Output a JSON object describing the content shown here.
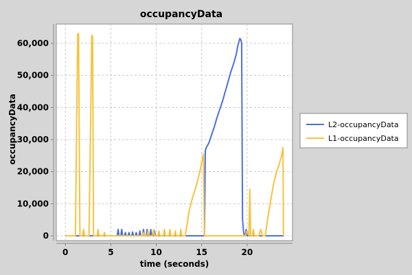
{
  "chart_data": {
    "type": "line",
    "title": "occupancyData",
    "xlabel": "time (seconds)",
    "ylabel": "occupancyData",
    "xlim": [
      -1,
      25
    ],
    "ylim": [
      -1500,
      66000
    ],
    "x_ticks": [
      0,
      5,
      10,
      15,
      20
    ],
    "y_ticks": [
      0,
      10000,
      20000,
      30000,
      40000,
      50000,
      60000
    ],
    "x_tick_labels": [
      "0",
      "5",
      "10",
      "15",
      "20"
    ],
    "y_tick_labels": [
      "0",
      "10,000",
      "20,000",
      "30,000",
      "40,000",
      "50,000",
      "60,000"
    ],
    "grid": true,
    "legend_position": "right",
    "series": [
      {
        "name": "L2-occupancyData",
        "color": "#4a6fe3",
        "points": [
          [
            0,
            0
          ],
          [
            5.7,
            0
          ],
          [
            5.8,
            2000
          ],
          [
            5.9,
            0
          ],
          [
            6.1,
            0
          ],
          [
            6.2,
            2000
          ],
          [
            6.3,
            0
          ],
          [
            6.5,
            0
          ],
          [
            6.6,
            1000
          ],
          [
            6.7,
            0
          ],
          [
            6.9,
            0
          ],
          [
            7.0,
            1000
          ],
          [
            7.1,
            0
          ],
          [
            7.3,
            0
          ],
          [
            7.4,
            1200
          ],
          [
            7.5,
            0
          ],
          [
            7.7,
            0
          ],
          [
            7.8,
            1000
          ],
          [
            7.9,
            0
          ],
          [
            8.1,
            0
          ],
          [
            8.2,
            1500
          ],
          [
            8.3,
            0
          ],
          [
            8.5,
            0
          ],
          [
            8.6,
            2000
          ],
          [
            8.7,
            0
          ],
          [
            8.9,
            0
          ],
          [
            9.0,
            2000
          ],
          [
            9.1,
            0
          ],
          [
            9.3,
            0
          ],
          [
            9.4,
            2000
          ],
          [
            9.5,
            0
          ],
          [
            9.7,
            0
          ],
          [
            9.8,
            1500
          ],
          [
            9.9,
            0
          ],
          [
            15.3,
            0
          ],
          [
            15.4,
            26500
          ],
          [
            15.5,
            27500
          ],
          [
            15.8,
            29000
          ],
          [
            16.1,
            31500
          ],
          [
            16.4,
            34000
          ],
          [
            16.7,
            37000
          ],
          [
            17.0,
            39500
          ],
          [
            17.3,
            42000
          ],
          [
            17.6,
            45000
          ],
          [
            17.9,
            48000
          ],
          [
            18.2,
            51000
          ],
          [
            18.5,
            53500
          ],
          [
            18.8,
            56500
          ],
          [
            19.0,
            59500
          ],
          [
            19.2,
            61500
          ],
          [
            19.3,
            61200
          ],
          [
            19.4,
            60000
          ],
          [
            19.5,
            5000
          ],
          [
            19.6,
            1500
          ],
          [
            19.7,
            0
          ],
          [
            19.8,
            0
          ],
          [
            19.9,
            2000
          ],
          [
            20.0,
            0
          ],
          [
            24.0,
            0
          ]
        ]
      },
      {
        "name": "L1-occupancyData",
        "color": "#f7c23c",
        "points": [
          [
            0,
            0
          ],
          [
            1.1,
            0
          ],
          [
            1.3,
            50000
          ],
          [
            1.35,
            63000
          ],
          [
            1.45,
            63000
          ],
          [
            1.6,
            0
          ],
          [
            1.9,
            0
          ],
          [
            2.0,
            2000
          ],
          [
            2.1,
            0
          ],
          [
            2.6,
            0
          ],
          [
            2.8,
            40000
          ],
          [
            2.9,
            62500
          ],
          [
            3.0,
            62000
          ],
          [
            3.1,
            0
          ],
          [
            3.5,
            0
          ],
          [
            3.6,
            2000
          ],
          [
            3.7,
            0
          ],
          [
            4.2,
            0
          ],
          [
            4.3,
            1000
          ],
          [
            4.4,
            0
          ],
          [
            8.5,
            0
          ],
          [
            8.6,
            1000
          ],
          [
            8.7,
            0
          ],
          [
            9.0,
            0
          ],
          [
            9.1,
            1500
          ],
          [
            9.2,
            0
          ],
          [
            9.6,
            0
          ],
          [
            9.7,
            2000
          ],
          [
            9.8,
            0
          ],
          [
            10.2,
            0
          ],
          [
            10.3,
            1500
          ],
          [
            10.4,
            0
          ],
          [
            10.8,
            0
          ],
          [
            10.9,
            2000
          ],
          [
            11.0,
            0
          ],
          [
            11.4,
            0
          ],
          [
            11.5,
            2000
          ],
          [
            11.6,
            0
          ],
          [
            12.0,
            0
          ],
          [
            12.1,
            1500
          ],
          [
            12.2,
            0
          ],
          [
            12.6,
            0
          ],
          [
            12.7,
            2000
          ],
          [
            12.8,
            0
          ],
          [
            13.2,
            0
          ],
          [
            13.6,
            7500
          ],
          [
            14.0,
            12000
          ],
          [
            14.4,
            15500
          ],
          [
            14.8,
            20000
          ],
          [
            15.2,
            25500
          ],
          [
            15.3,
            0
          ],
          [
            19.0,
            0
          ],
          [
            19.8,
            0
          ],
          [
            20.0,
            1500
          ],
          [
            20.2,
            0
          ],
          [
            20.3,
            14500
          ],
          [
            20.4,
            0
          ],
          [
            20.6,
            0
          ],
          [
            20.7,
            2000
          ],
          [
            20.8,
            0
          ],
          [
            21.3,
            0
          ],
          [
            21.5,
            2000
          ],
          [
            21.7,
            0
          ],
          [
            22.0,
            0
          ],
          [
            22.3,
            6000
          ],
          [
            22.6,
            11000
          ],
          [
            22.9,
            16000
          ],
          [
            23.2,
            19500
          ],
          [
            23.5,
            22000
          ],
          [
            23.8,
            25000
          ],
          [
            23.95,
            27500
          ],
          [
            24.0,
            0
          ]
        ]
      }
    ]
  }
}
